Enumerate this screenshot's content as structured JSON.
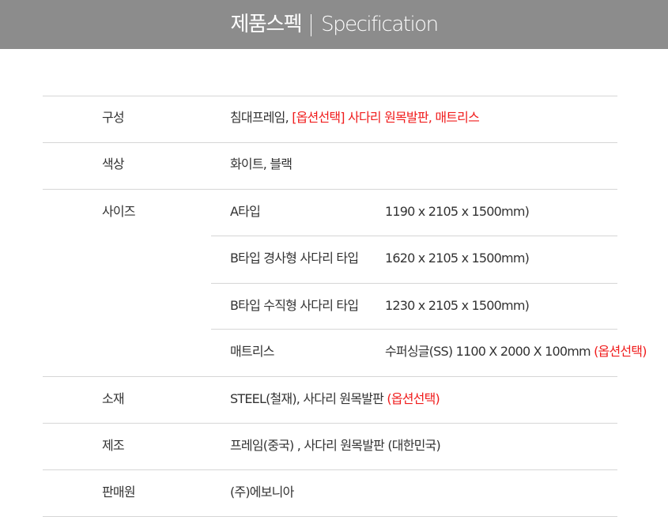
{
  "header": {
    "title_ko": "제품스펙",
    "title_en": "Specification"
  },
  "rows": {
    "composition": {
      "label": "구성",
      "value": "침대프레임, ",
      "option": "[옵션선택] 사다리 원목발판, 매트리스"
    },
    "color": {
      "label": "색상",
      "value": "화이트, 블랙"
    },
    "size": {
      "label": "사이즈",
      "items": [
        {
          "type": "A타입",
          "dims": "1190 x 2105 x 1500mm)"
        },
        {
          "type": "B타입 경사형 사다리 타입",
          "dims": "1620 x 2105 x 1500mm)"
        },
        {
          "type": "B타입 수직형 사다리 타입",
          "dims": "1230 x 2105 x 1500mm)"
        },
        {
          "type": "매트리스",
          "dims": "수퍼싱글(SS) 1100 X 2000 X 100mm ",
          "option": "(옵션선택)"
        }
      ]
    },
    "material": {
      "label": "소재",
      "value": "STEEL(철재), 사다리 원목발판 ",
      "option": "(옵션선택)"
    },
    "manufacture": {
      "label": "제조",
      "value": "프레임(중국) , 사다리 원목발판 (대한민국)"
    },
    "seller": {
      "label": "판매원",
      "value": "(주)에보니아"
    }
  },
  "colors": {
    "header_bg": "#8c8c8c",
    "option": "#f01c1c"
  }
}
